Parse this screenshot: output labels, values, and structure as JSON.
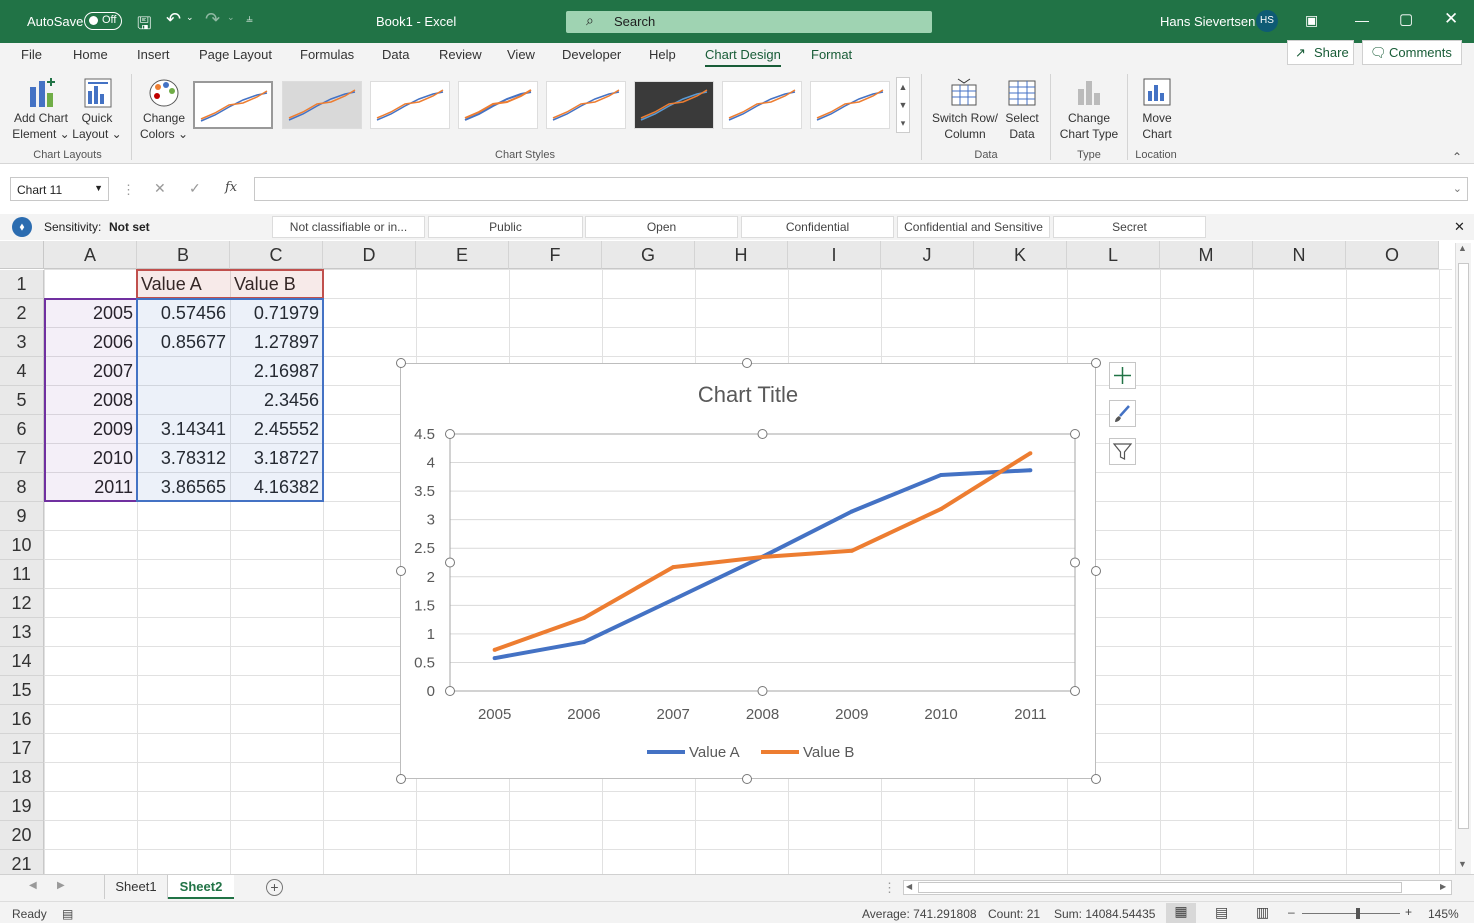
{
  "titlebar": {
    "autosave_label": "AutoSave",
    "autosave_state": "Off",
    "doc_title": "Book1  -  Excel",
    "search_placeholder": "Search",
    "user_name": "Hans Sievertsen",
    "user_initials": "HS"
  },
  "menu": {
    "items": [
      "File",
      "Home",
      "Insert",
      "Page Layout",
      "Formulas",
      "Data",
      "Review",
      "View",
      "Developer",
      "Help",
      "Chart Design",
      "Format"
    ],
    "active": "Chart Design",
    "share": "Share",
    "comments": "Comments"
  },
  "ribbon": {
    "add_chart_element": [
      "Add Chart",
      "Element"
    ],
    "quick_layout": [
      "Quick",
      "Layout"
    ],
    "change_colors": [
      "Change",
      "Colors"
    ],
    "switch_row_col": [
      "Switch Row/",
      "Column"
    ],
    "select_data": [
      "Select",
      "Data"
    ],
    "change_chart_type": [
      "Change",
      "Chart Type"
    ],
    "move_chart": [
      "Move",
      "Chart"
    ],
    "groups": {
      "chart_layouts": "Chart Layouts",
      "chart_styles": "Chart Styles",
      "data": "Data",
      "type": "Type",
      "location": "Location"
    }
  },
  "formula_bar": {
    "name_box": "Chart 11",
    "fx": "fx",
    "value": ""
  },
  "sensitivity": {
    "label": "Sensitivity:",
    "value": "Not set",
    "options": [
      "Not classifiable or in...",
      "Public",
      "Open",
      "Confidential",
      "Confidential and Sensitive",
      "Secret"
    ]
  },
  "sheet": {
    "columns": [
      "A",
      "B",
      "C",
      "D",
      "E",
      "F",
      "G",
      "H",
      "I",
      "J",
      "K",
      "L",
      "M",
      "N",
      "O"
    ],
    "rows": [
      "1",
      "2",
      "3",
      "4",
      "5",
      "6",
      "7",
      "8",
      "9",
      "10",
      "11",
      "12",
      "13",
      "14",
      "15",
      "16",
      "17",
      "18",
      "19",
      "20",
      "21"
    ],
    "cells": [
      [
        "",
        "Value A",
        "Value B"
      ],
      [
        "2005",
        "0.57456",
        "0.71979"
      ],
      [
        "2006",
        "0.85677",
        "1.27897"
      ],
      [
        "2007",
        "",
        "2.16987"
      ],
      [
        "2008",
        "",
        "2.3456"
      ],
      [
        "2009",
        "3.14341",
        "2.45552"
      ],
      [
        "2010",
        "3.78312",
        "3.18727"
      ],
      [
        "2011",
        "3.86565",
        "4.16382"
      ]
    ]
  },
  "chart_data": {
    "type": "line",
    "title": "Chart Title",
    "categories": [
      "2005",
      "2006",
      "2007",
      "2008",
      "2009",
      "2010",
      "2011"
    ],
    "series": [
      {
        "name": "Value A",
        "color": "#4472c4",
        "values": [
          0.57456,
          0.85677,
          1.6,
          2.35,
          3.14341,
          3.78312,
          3.86565
        ]
      },
      {
        "name": "Value B",
        "color": "#ed7d31",
        "values": [
          0.71979,
          1.27897,
          2.16987,
          2.3456,
          2.45552,
          3.18727,
          4.16382
        ]
      }
    ],
    "yticks": [
      "0",
      "0.5",
      "1",
      "1.5",
      "2",
      "2.5",
      "3",
      "3.5",
      "4",
      "4.5"
    ],
    "ylim": [
      0,
      4.5
    ],
    "grid": true,
    "legend": "bottom"
  },
  "tabs": {
    "sheets": [
      "Sheet1",
      "Sheet2"
    ],
    "active": "Sheet2"
  },
  "status": {
    "ready": "Ready",
    "average": "Average: 741.291808",
    "count": "Count: 21",
    "sum": "Sum: 14084.54435",
    "zoom": "145%"
  }
}
